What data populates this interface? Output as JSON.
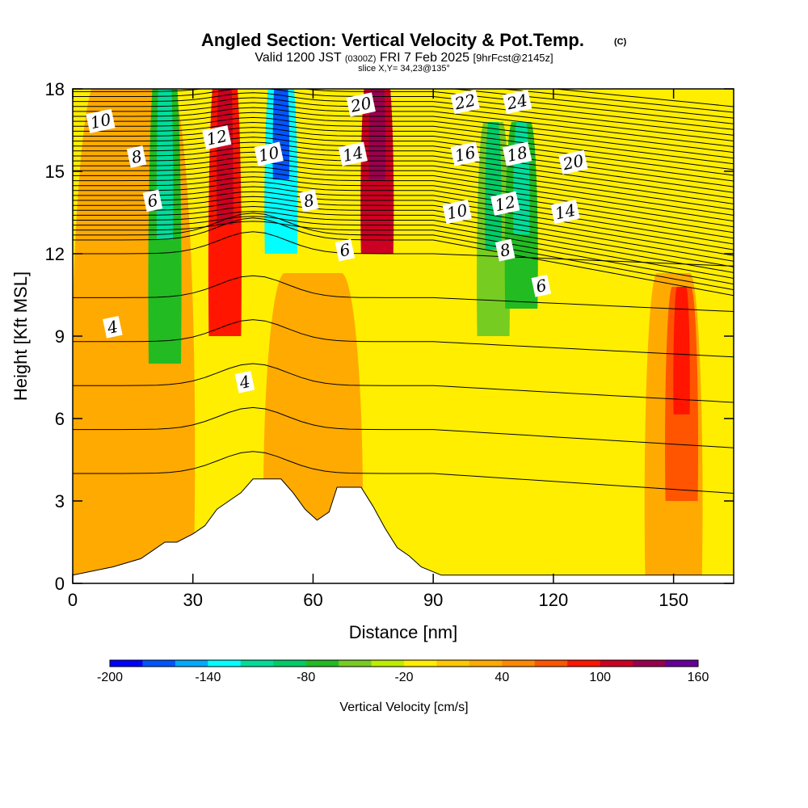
{
  "figure": {
    "title_main": "Angled Section: Vertical Velocity & Pot.Temp.",
    "title_copyright": "(C)",
    "subtitle_prefix": "Valid 1200 JST",
    "subtitle_utc": "(0300Z)",
    "subtitle_date": "FRI 7 Feb 2025",
    "subtitle_forecast": "[9hrFcst@2145z]",
    "slice_label": "slice X,Y= 34,23@135°"
  },
  "colors": {
    "terrain": "#ffffff",
    "contour": "#000000",
    "palette": [
      "#0000ff",
      "#0055ff",
      "#00aaff",
      "#00ffff",
      "#00dd99",
      "#00cc66",
      "#22bb22",
      "#77cc22",
      "#bbee00",
      "#ffee00",
      "#ffc800",
      "#ffaa00",
      "#ff8800",
      "#ff5500",
      "#ff1500",
      "#cc0022",
      "#99004d",
      "#660099"
    ]
  },
  "chart_data": {
    "type": "heatmap",
    "xlabel": "Distance [nm]",
    "ylabel": "Height [Kft MSL]",
    "xlim": [
      0,
      165
    ],
    "ylim": [
      0,
      18
    ],
    "x_ticks": [
      0,
      30,
      60,
      90,
      120,
      150
    ],
    "y_ticks": [
      0,
      3,
      6,
      9,
      12,
      15,
      18
    ],
    "colorbar": {
      "label": "Vertical Velocity [cm/s]",
      "range": [
        -200,
        160
      ],
      "step": 20,
      "tick_labels": [
        "-200",
        "-140",
        "-80",
        "-20",
        "40",
        "100",
        "160"
      ],
      "tick_values": [
        -200,
        -140,
        -80,
        -20,
        40,
        100,
        160
      ]
    },
    "vertical_velocity_features": [
      {
        "x": 23,
        "z_range": [
          8,
          18
        ],
        "value": -80
      },
      {
        "x": 38,
        "z_range": [
          9,
          18
        ],
        "value": 80
      },
      {
        "x": 52,
        "z_range": [
          12,
          18
        ],
        "value": -140
      },
      {
        "x": 76,
        "z_range": [
          12,
          18
        ],
        "value": 100
      },
      {
        "x": 105,
        "z_range": [
          9,
          16
        ],
        "value": -60
      },
      {
        "x": 112,
        "z_range": [
          10,
          16
        ],
        "value": -80
      },
      {
        "x": 152,
        "z_range": [
          3,
          10
        ],
        "value": 60
      }
    ],
    "terrain": [
      {
        "x": 0,
        "z": 0.3
      },
      {
        "x": 10,
        "z": 0.6
      },
      {
        "x": 17,
        "z": 0.9
      },
      {
        "x": 20,
        "z": 1.2
      },
      {
        "x": 23,
        "z": 1.5
      },
      {
        "x": 26,
        "z": 1.5
      },
      {
        "x": 30,
        "z": 1.8
      },
      {
        "x": 33,
        "z": 2.1
      },
      {
        "x": 36,
        "z": 2.7
      },
      {
        "x": 39,
        "z": 3.0
      },
      {
        "x": 42,
        "z": 3.3
      },
      {
        "x": 45,
        "z": 3.8
      },
      {
        "x": 52,
        "z": 3.8
      },
      {
        "x": 55,
        "z": 3.3
      },
      {
        "x": 58,
        "z": 2.7
      },
      {
        "x": 61,
        "z": 2.3
      },
      {
        "x": 64,
        "z": 2.6
      },
      {
        "x": 66,
        "z": 3.5
      },
      {
        "x": 72,
        "z": 3.5
      },
      {
        "x": 75,
        "z": 2.8
      },
      {
        "x": 78,
        "z": 2.0
      },
      {
        "x": 81,
        "z": 1.3
      },
      {
        "x": 84,
        "z": 1.0
      },
      {
        "x": 87,
        "z": 0.6
      },
      {
        "x": 92,
        "z": 0.3
      },
      {
        "x": 165,
        "z": 0.3
      }
    ],
    "contour_labels": [
      {
        "text": "10",
        "x": 7,
        "z": 16.8
      },
      {
        "text": "8",
        "x": 16,
        "z": 15.5
      },
      {
        "text": "6",
        "x": 20,
        "z": 13.9
      },
      {
        "text": "4",
        "x": 10,
        "z": 9.3
      },
      {
        "text": "12",
        "x": 36,
        "z": 16.2
      },
      {
        "text": "10",
        "x": 49,
        "z": 15.6
      },
      {
        "text": "8",
        "x": 59,
        "z": 13.9
      },
      {
        "text": "6",
        "x": 68,
        "z": 12.1
      },
      {
        "text": "4",
        "x": 43,
        "z": 7.3
      },
      {
        "text": "20",
        "x": 72,
        "z": 17.4
      },
      {
        "text": "14",
        "x": 70,
        "z": 15.6
      },
      {
        "text": "22",
        "x": 98,
        "z": 17.5
      },
      {
        "text": "24",
        "x": 111,
        "z": 17.5
      },
      {
        "text": "16",
        "x": 98,
        "z": 15.6
      },
      {
        "text": "18",
        "x": 111,
        "z": 15.6
      },
      {
        "text": "20",
        "x": 125,
        "z": 15.3
      },
      {
        "text": "10",
        "x": 96,
        "z": 13.5
      },
      {
        "text": "12",
        "x": 108,
        "z": 13.8
      },
      {
        "text": "14",
        "x": 123,
        "z": 13.5
      },
      {
        "text": "8",
        "x": 108,
        "z": 12.1
      },
      {
        "text": "6",
        "x": 117,
        "z": 10.8
      }
    ]
  }
}
